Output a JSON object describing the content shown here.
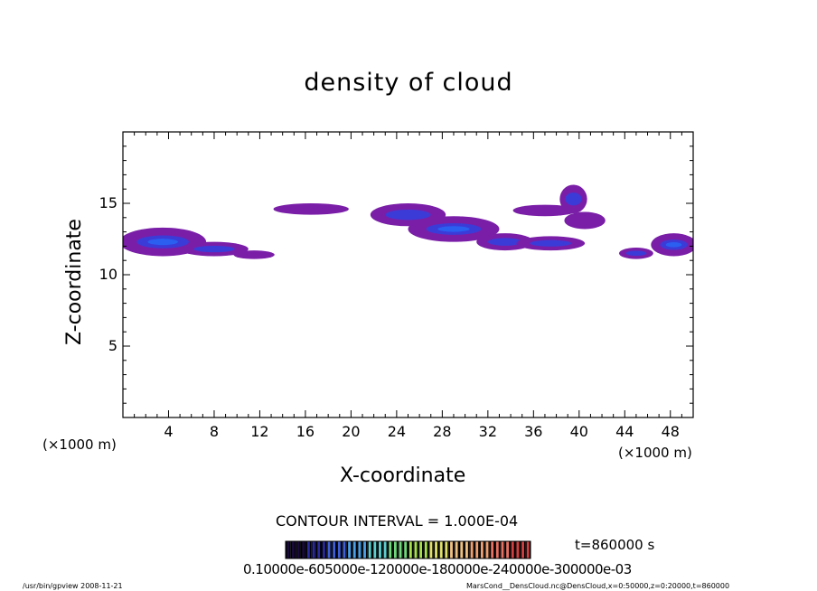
{
  "chart_data": {
    "type": "heatmap",
    "title": "density of cloud",
    "xlabel": "X-coordinate",
    "ylabel": "Z-coordinate",
    "x_unit": "(×1000 m)",
    "xlim": [
      0,
      50
    ],
    "ylim": [
      0,
      20
    ],
    "x_ticks": [
      "4",
      "8",
      "12",
      "16",
      "20",
      "24",
      "28",
      "32",
      "36",
      "40",
      "44",
      "48"
    ],
    "y_ticks": [
      "5",
      "10",
      "15"
    ],
    "contour_interval": "CONTOUR INTERVAL = 1.000E-04",
    "time_label": "t=860000 s",
    "colorbar_labels": "0.10000e-605000e-120000e-180000e-240000e-300000e-03",
    "colorbar_colors": [
      "#1a0a3c",
      "#2a2a9e",
      "#3f5fd8",
      "#4aa0e8",
      "#5ccfcf",
      "#6fd87a",
      "#a6e04a",
      "#e0e06a",
      "#f0c080",
      "#f0a070",
      "#e87060",
      "#d04040"
    ],
    "fill_color": "#7a1ea8",
    "core_color": "#3b3bd8",
    "peak_color": "#2a5ff0",
    "cloud_blobs": [
      {
        "x": 3.5,
        "z": 12.3,
        "rx": 3.8,
        "rz": 1.0,
        "level": 3
      },
      {
        "x": 8.0,
        "z": 11.8,
        "rx": 3.0,
        "rz": 0.5,
        "level": 2
      },
      {
        "x": 11.5,
        "z": 11.4,
        "rx": 1.8,
        "rz": 0.3,
        "level": 1
      },
      {
        "x": 16.5,
        "z": 14.6,
        "rx": 3.3,
        "rz": 0.4,
        "level": 1
      },
      {
        "x": 25.0,
        "z": 14.2,
        "rx": 3.3,
        "rz": 0.8,
        "level": 2
      },
      {
        "x": 29.0,
        "z": 13.2,
        "rx": 4.0,
        "rz": 0.9,
        "level": 3
      },
      {
        "x": 33.5,
        "z": 12.3,
        "rx": 2.5,
        "rz": 0.6,
        "level": 2
      },
      {
        "x": 37.5,
        "z": 12.2,
        "rx": 3.0,
        "rz": 0.5,
        "level": 2
      },
      {
        "x": 37.0,
        "z": 14.5,
        "rx": 2.8,
        "rz": 0.4,
        "level": 1
      },
      {
        "x": 39.5,
        "z": 15.3,
        "rx": 1.2,
        "rz": 1.0,
        "level": 2
      },
      {
        "x": 40.5,
        "z": 13.8,
        "rx": 1.8,
        "rz": 0.6,
        "level": 1
      },
      {
        "x": 45.0,
        "z": 11.5,
        "rx": 1.5,
        "rz": 0.4,
        "level": 2
      },
      {
        "x": 48.3,
        "z": 12.1,
        "rx": 2.0,
        "rz": 0.8,
        "level": 3
      }
    ]
  },
  "footer": {
    "left": "/usr/bin/gpview   2008-11-21",
    "right": "MarsCond__DensCloud.nc@DensCloud,x=0:50000,z=0:20000,t=860000"
  }
}
